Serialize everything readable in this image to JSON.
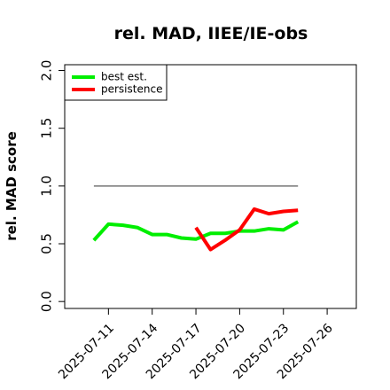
{
  "chart_data": {
    "type": "line",
    "title": "rel. MAD, IIEE/IE-obs",
    "ylabel": "rel. MAD score",
    "x": [
      "2025-07-10",
      "2025-07-11",
      "2025-07-12",
      "2025-07-13",
      "2025-07-14",
      "2025-07-15",
      "2025-07-16",
      "2025-07-17",
      "2025-07-18",
      "2025-07-19",
      "2025-07-20",
      "2025-07-21",
      "2025-07-22",
      "2025-07-23",
      "2025-07-24"
    ],
    "series": [
      {
        "name": "best est.",
        "color": "#00ee00",
        "values": [
          0.53,
          0.67,
          0.66,
          0.64,
          0.58,
          0.58,
          0.55,
          0.54,
          0.59,
          0.59,
          0.61,
          0.61,
          0.63,
          0.62,
          0.69
        ]
      },
      {
        "name": "persistence",
        "color": "#ff0000",
        "values": [
          null,
          null,
          null,
          null,
          null,
          null,
          null,
          0.64,
          0.45,
          0.53,
          0.62,
          0.8,
          0.76,
          0.78,
          0.79
        ]
      }
    ],
    "hline": {
      "y": 1.0,
      "color": "#777777"
    },
    "xlim": [
      "2025-07-08",
      "2025-07-28"
    ],
    "xticks": [
      "2025-07-11",
      "2025-07-14",
      "2025-07-17",
      "2025-07-20",
      "2025-07-23",
      "2025-07-26"
    ],
    "ylim": [
      -0.06,
      2.05
    ],
    "yticks": [
      {
        "value": 0,
        "label": "0.0"
      },
      {
        "value": 0.5,
        "label": "0.5"
      },
      {
        "value": 1,
        "label": "1.0"
      },
      {
        "value": 1.5,
        "label": "1.5"
      },
      {
        "value": 2,
        "label": "2.0"
      }
    ],
    "legend": "top-left"
  }
}
